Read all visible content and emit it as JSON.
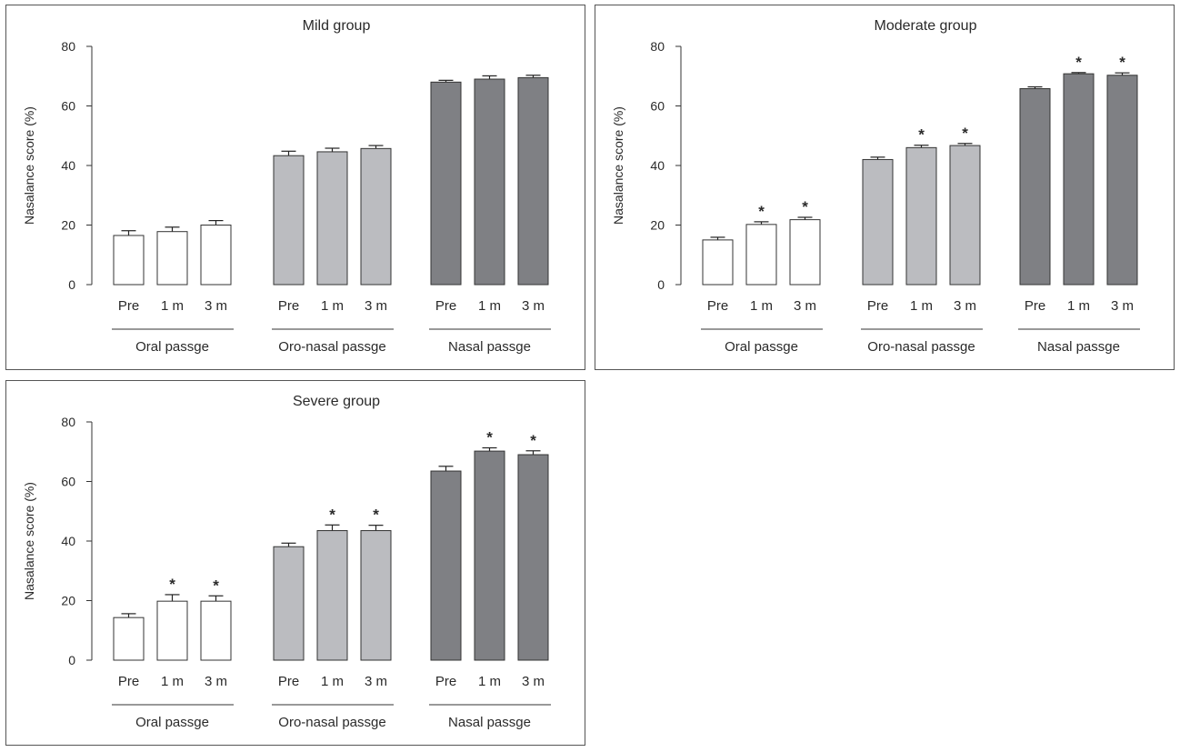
{
  "chart_data": [
    {
      "type": "bar",
      "title": "Mild group",
      "ylabel": "Nasalance score (%)",
      "ylim": [
        0,
        80
      ],
      "yticks": [
        0,
        20,
        40,
        60,
        80
      ],
      "categories": [
        "Pre",
        "1 m",
        "3 m"
      ],
      "groups": [
        {
          "name": "Oral passge",
          "fill": "#ffffff",
          "values": [
            16.5,
            17.8,
            20.0
          ],
          "errors": [
            1.6,
            1.5,
            1.5
          ],
          "significant": [
            false,
            false,
            false
          ]
        },
        {
          "name": "Oro-nasal passge",
          "fill": "#bbbcc0",
          "values": [
            43.3,
            44.6,
            45.7
          ],
          "errors": [
            1.5,
            1.2,
            1.0
          ],
          "significant": [
            false,
            false,
            false
          ]
        },
        {
          "name": "Nasal passge",
          "fill": "#7f8084",
          "values": [
            68.0,
            69.0,
            69.5
          ],
          "errors": [
            0.6,
            1.1,
            0.8
          ],
          "significant": [
            false,
            false,
            false
          ]
        }
      ]
    },
    {
      "type": "bar",
      "title": "Moderate group",
      "ylabel": "Nasalance score (%)",
      "ylim": [
        0,
        80
      ],
      "yticks": [
        0,
        20,
        40,
        60,
        80
      ],
      "categories": [
        "Pre",
        "1 m",
        "3 m"
      ],
      "groups": [
        {
          "name": "Oral passge",
          "fill": "#ffffff",
          "values": [
            15.0,
            20.2,
            21.8
          ],
          "errors": [
            0.9,
            0.9,
            0.8
          ],
          "significant": [
            false,
            true,
            true
          ]
        },
        {
          "name": "Oro-nasal passge",
          "fill": "#bbbcc0",
          "values": [
            42.0,
            46.0,
            46.7
          ],
          "errors": [
            0.8,
            0.8,
            0.7
          ],
          "significant": [
            false,
            true,
            true
          ]
        },
        {
          "name": "Nasal passge",
          "fill": "#7f8084",
          "values": [
            65.8,
            70.8,
            70.3
          ],
          "errors": [
            0.6,
            0.4,
            0.8
          ],
          "significant": [
            false,
            true,
            true
          ]
        }
      ]
    },
    {
      "type": "bar",
      "title": "Severe group",
      "ylabel": "Nasalance score (%)",
      "ylim": [
        0,
        80
      ],
      "yticks": [
        0,
        20,
        40,
        60,
        80
      ],
      "categories": [
        "Pre",
        "1 m",
        "3 m"
      ],
      "groups": [
        {
          "name": "Oral passge",
          "fill": "#ffffff",
          "values": [
            14.3,
            19.8,
            19.8
          ],
          "errors": [
            1.3,
            2.2,
            1.8
          ],
          "significant": [
            false,
            true,
            true
          ]
        },
        {
          "name": "Oro-nasal passge",
          "fill": "#bbbcc0",
          "values": [
            38.1,
            43.5,
            43.5
          ],
          "errors": [
            1.2,
            1.9,
            1.8
          ],
          "significant": [
            false,
            true,
            true
          ]
        },
        {
          "name": "Nasal passge",
          "fill": "#7f8084",
          "values": [
            63.5,
            70.2,
            69.0
          ],
          "errors": [
            1.6,
            1.1,
            1.3
          ],
          "significant": [
            false,
            true,
            true
          ]
        }
      ]
    }
  ],
  "significance_marker": "*"
}
